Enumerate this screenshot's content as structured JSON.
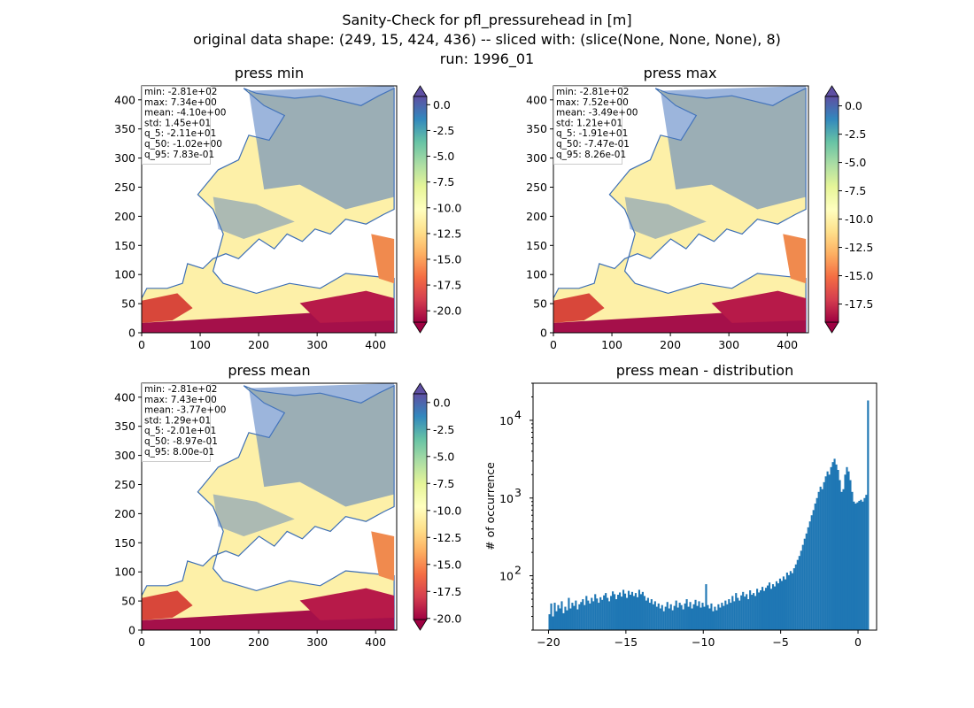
{
  "figure": {
    "title_lines": [
      "Sanity-Check for pfl_pressurehead in [m]",
      "original data shape: (249, 15, 424, 436) -- sliced with: (slice(None, None, None), 8)",
      "run: 1996_01"
    ]
  },
  "chart_data": [
    {
      "type": "heatmap",
      "title": "press min",
      "xlim": [
        0,
        436
      ],
      "ylim": [
        0,
        424
      ],
      "xticks": [
        0,
        100,
        200,
        300,
        400
      ],
      "yticks": [
        0,
        50,
        100,
        150,
        200,
        250,
        300,
        350,
        400
      ],
      "colorbar": {
        "cmap": "Spectral",
        "extend": "both",
        "vmin": -21.1,
        "vmax": 0.8,
        "ticks": [
          "0.0",
          "-2.5",
          "-5.0",
          "-7.5",
          "-10.0",
          "-12.5",
          "-15.0",
          "-17.5",
          "-20.0"
        ],
        "tick_values": [
          0,
          -2.5,
          -5,
          -7.5,
          -10,
          -12.5,
          -15,
          -17.5,
          -20
        ]
      },
      "stats": [
        "min: -2.81e+02",
        "max: 7.34e+00",
        "mean: -4.10e+00",
        "std: 1.45e+01",
        "q_5: -2.11e+01",
        "q_50: -1.02e+00",
        "q_95: 7.83e-01"
      ]
    },
    {
      "type": "heatmap",
      "title": "press max",
      "xlim": [
        0,
        436
      ],
      "ylim": [
        0,
        424
      ],
      "xticks": [
        0,
        100,
        200,
        300,
        400
      ],
      "yticks": [
        0,
        50,
        100,
        150,
        200,
        250,
        300,
        350,
        400
      ],
      "colorbar": {
        "cmap": "Spectral",
        "extend": "both",
        "vmin": -19.1,
        "vmax": 0.83,
        "ticks": [
          "0.0",
          "-2.5",
          "-5.0",
          "-7.5",
          "-10.0",
          "-12.5",
          "-15.0",
          "-17.5"
        ],
        "tick_values": [
          0,
          -2.5,
          -5,
          -7.5,
          -10,
          -12.5,
          -15,
          -17.5
        ]
      },
      "stats": [
        "min: -2.81e+02",
        "max: 7.52e+00",
        "mean: -3.49e+00",
        "std: 1.21e+01",
        "q_5: -1.91e+01",
        "q_50: -7.47e-01",
        "q_95: 8.26e-01"
      ]
    },
    {
      "type": "heatmap",
      "title": "press mean",
      "xlim": [
        0,
        436
      ],
      "ylim": [
        0,
        424
      ],
      "xticks": [
        0,
        100,
        200,
        300,
        400
      ],
      "yticks": [
        0,
        50,
        100,
        150,
        200,
        250,
        300,
        350,
        400
      ],
      "colorbar": {
        "cmap": "Spectral",
        "extend": "both",
        "vmin": -20.1,
        "vmax": 0.8,
        "ticks": [
          "0.0",
          "-2.5",
          "-5.0",
          "-7.5",
          "-10.0",
          "-12.5",
          "-15.0",
          "-17.5",
          "-20.0"
        ],
        "tick_values": [
          0,
          -2.5,
          -5,
          -7.5,
          -10,
          -12.5,
          -15,
          -17.5,
          -20
        ]
      },
      "stats": [
        "min: -2.81e+02",
        "max: 7.43e+00",
        "mean: -3.77e+00",
        "std: 1.29e+01",
        "q_5: -2.01e+01",
        "q_50: -8.97e-01",
        "q_95: 8.00e-01"
      ]
    },
    {
      "type": "bar",
      "subtype": "histogram",
      "title": "press mean - distribution",
      "ylabel": "# of occurrence",
      "xlabel": "",
      "yscale": "log",
      "xlim": [
        -21.0,
        1.2
      ],
      "ylim": [
        20,
        30000
      ],
      "xticks": [
        -20,
        -15,
        -10,
        -5,
        0
      ],
      "yticks": [
        100,
        1000,
        10000
      ],
      "ytick_labels": [
        "10",
        "10",
        "10"
      ],
      "ytick_exponents": [
        "2",
        "3",
        "4"
      ],
      "bin_range": [
        -20.0,
        0.7
      ],
      "bar_color": "#1f77b4",
      "counts": [
        32,
        44,
        30,
        45,
        35,
        42,
        38,
        47,
        33,
        40,
        36,
        52,
        38,
        45,
        41,
        48,
        37,
        43,
        46,
        50,
        42,
        55,
        48,
        44,
        52,
        47,
        58,
        51,
        45,
        53,
        49,
        56,
        60,
        52,
        47,
        55,
        63,
        58,
        50,
        57,
        61,
        54,
        66,
        59,
        52,
        64,
        57,
        62,
        55,
        60,
        53,
        66,
        58,
        62,
        55,
        48,
        52,
        45,
        50,
        43,
        47,
        40,
        44,
        38,
        42,
        35,
        40,
        46,
        38,
        43,
        36,
        41,
        48,
        39,
        45,
        42,
        37,
        44,
        50,
        40,
        46,
        38,
        43,
        49,
        41,
        47,
        39,
        45,
        40,
        78,
        42,
        38,
        44,
        35,
        40,
        36,
        43,
        39,
        45,
        41,
        48,
        43,
        50,
        45,
        55,
        47,
        60,
        52,
        48,
        56,
        62,
        54,
        58,
        50,
        65,
        57,
        60,
        55,
        68,
        61,
        65,
        72,
        64,
        70,
        75,
        82,
        68,
        78,
        73,
        85,
        80,
        92,
        86,
        98,
        90,
        110,
        102,
        115,
        108,
        125,
        140,
        160,
        180,
        210,
        250,
        300,
        350,
        420,
        500,
        600,
        700,
        850,
        1000,
        1200,
        1400,
        1300,
        1600,
        1900,
        2200,
        2000,
        2500,
        2900,
        3200,
        2700,
        2300,
        1700,
        1200,
        1300,
        2000,
        2500,
        2200,
        1700,
        1200,
        900,
        850,
        880,
        920,
        950,
        900,
        1000,
        1100,
        18000
      ]
    }
  ]
}
